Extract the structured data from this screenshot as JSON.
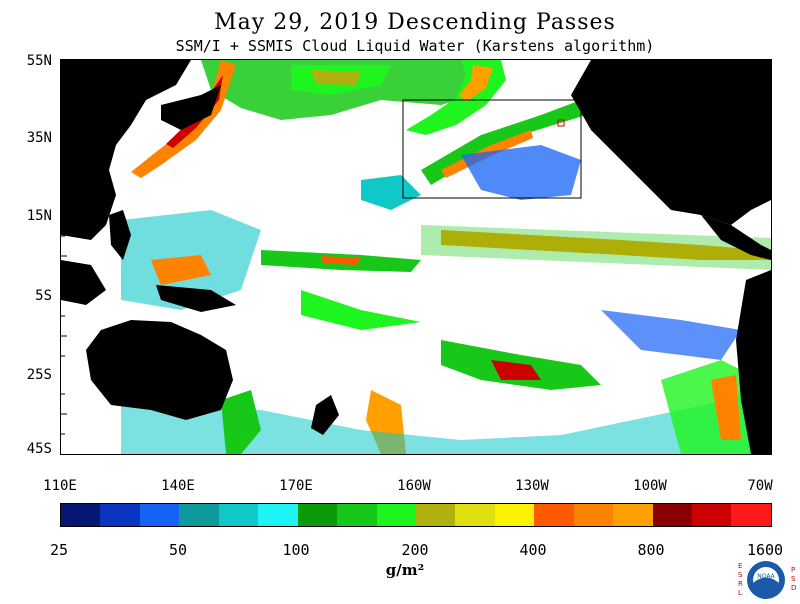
{
  "header": {
    "title": "May 29, 2019  Descending Passes",
    "subtitle": "SSM/I + SSMIS Cloud Liquid Water (Karstens algorithm)"
  },
  "map": {
    "lat_labels": [
      "55N",
      "35N",
      "15N",
      "5S",
      "25S",
      "45S"
    ],
    "lon_labels": [
      "110E",
      "140E",
      "170E",
      "160W",
      "130W",
      "100W",
      "70W"
    ],
    "land_color": "#000000",
    "no_data_color": "#ffffff",
    "highlight_box_color": "#000000"
  },
  "colorbar": {
    "colors": [
      "#061673",
      "#0a35c0",
      "#1563f5",
      "#0d9a9a",
      "#10c8c8",
      "#1ef3f5",
      "#0a9a0a",
      "#18c818",
      "#1ef51e",
      "#b0b010",
      "#e0e010",
      "#fff200",
      "#ff5a00",
      "#ff8200",
      "#ffa000",
      "#8a0000",
      "#cc0000",
      "#ff1a1a"
    ],
    "tick_labels": [
      "25",
      "50",
      "100",
      "200",
      "400",
      "800",
      "1600"
    ],
    "units": "g/m²"
  },
  "logo": {
    "left_letters": "ESRL",
    "right_letters": "PSD",
    "emblem_text": "NOAA"
  }
}
